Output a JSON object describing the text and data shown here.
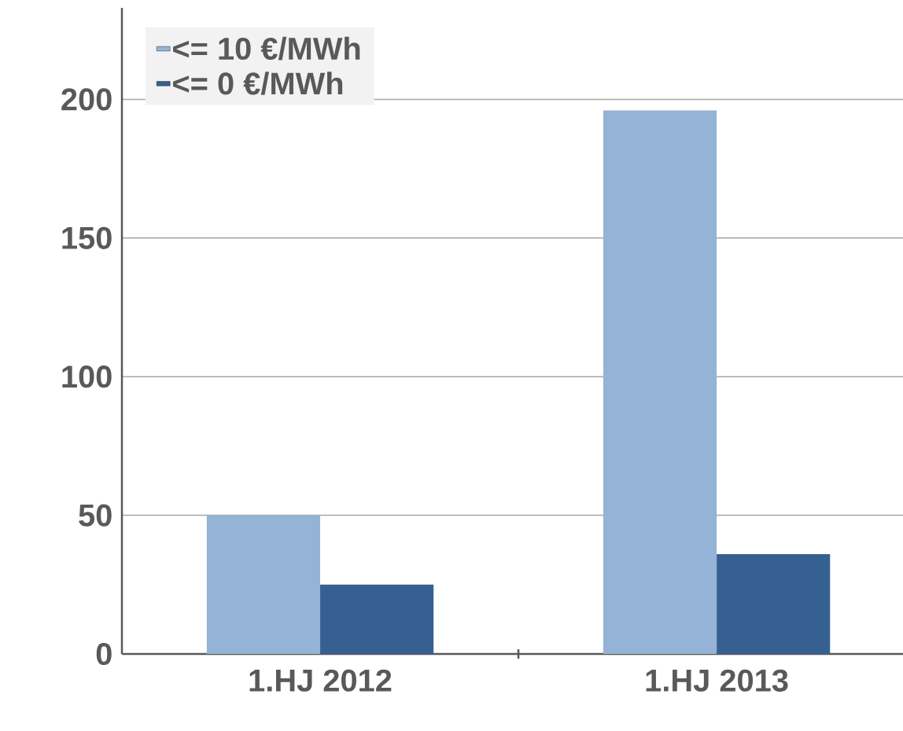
{
  "chart_data": {
    "type": "bar",
    "categories": [
      "1.HJ 2012",
      "1.HJ 2013"
    ],
    "series": [
      {
        "name": "<= 10 €/MWh",
        "color": "#95b3d7",
        "values": [
          50,
          196
        ]
      },
      {
        "name": "<= 0 €/MWh",
        "color": "#376092",
        "values": [
          25,
          36
        ]
      }
    ],
    "ylim": [
      0,
      233
    ],
    "yticks": [
      0,
      50,
      100,
      150,
      200
    ],
    "grid": "y",
    "legend": "top left"
  }
}
